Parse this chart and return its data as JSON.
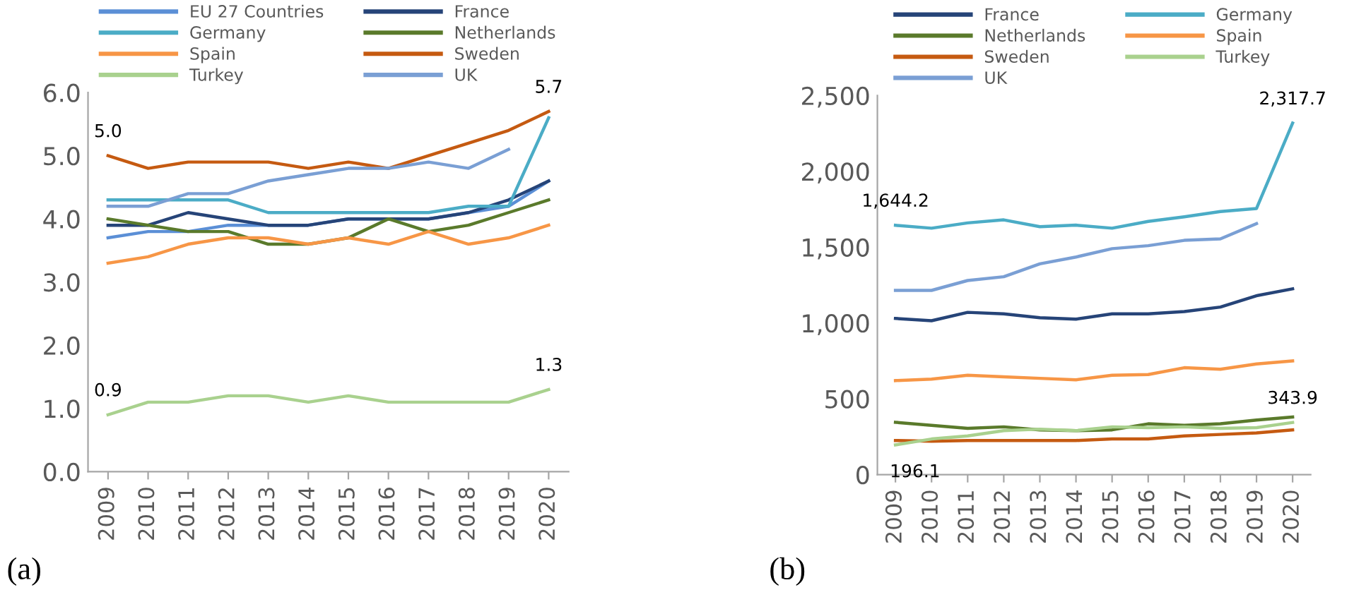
{
  "chart_data": [
    {
      "type": "line",
      "categories": [
        "2009",
        "2010",
        "2011",
        "2012",
        "2013",
        "2014",
        "2015",
        "2016",
        "2017",
        "2018",
        "2019",
        "2020"
      ],
      "ylim": [
        0,
        6
      ],
      "yticks": [
        {
          "value": 0,
          "label": "0.0"
        },
        {
          "value": 1,
          "label": "1.0"
        },
        {
          "value": 2,
          "label": "2.0"
        },
        {
          "value": 3,
          "label": "3.0"
        },
        {
          "value": 4,
          "label": "4.0"
        },
        {
          "value": 5,
          "label": "5.0"
        },
        {
          "value": 6,
          "label": "6.0"
        }
      ],
      "grid": false,
      "legend": "top",
      "marker": "none",
      "line_style": "solid",
      "series": [
        {
          "name": "EU 27 Countries",
          "color": "#5b8fd6",
          "values": [
            3.7,
            3.8,
            3.8,
            3.9,
            3.9,
            3.9,
            4.0,
            4.0,
            4.0,
            4.1,
            4.2,
            4.6
          ]
        },
        {
          "name": "France",
          "color": "#264478",
          "values": [
            3.9,
            3.9,
            4.1,
            4.0,
            3.9,
            3.9,
            4.0,
            4.0,
            4.0,
            4.1,
            4.3,
            4.6
          ]
        },
        {
          "name": "Germany",
          "color": "#4bacc6",
          "values": [
            4.3,
            4.3,
            4.3,
            4.3,
            4.1,
            4.1,
            4.1,
            4.1,
            4.1,
            4.2,
            4.2,
            5.6
          ]
        },
        {
          "name": "Netherlands",
          "color": "#5a7a2b",
          "values": [
            4.0,
            3.9,
            3.8,
            3.8,
            3.6,
            3.6,
            3.7,
            4.0,
            3.8,
            3.9,
            4.1,
            4.3
          ]
        },
        {
          "name": "Spain",
          "color": "#f79646",
          "values": [
            3.3,
            3.4,
            3.6,
            3.7,
            3.7,
            3.6,
            3.7,
            3.6,
            3.8,
            3.6,
            3.7,
            3.9
          ]
        },
        {
          "name": "Sweden",
          "color": "#c55a11",
          "values": [
            5.0,
            4.8,
            4.9,
            4.9,
            4.9,
            4.8,
            4.9,
            4.8,
            5.0,
            5.2,
            5.4,
            5.7
          ]
        },
        {
          "name": "Turkey",
          "color": "#a9d18e",
          "values": [
            0.9,
            1.1,
            1.1,
            1.2,
            1.2,
            1.1,
            1.2,
            1.1,
            1.1,
            1.1,
            1.1,
            1.3
          ]
        },
        {
          "name": "UK",
          "color": "#7a9fd4",
          "values": [
            4.2,
            4.2,
            4.4,
            4.4,
            4.6,
            4.7,
            4.8,
            4.8,
            4.9,
            4.8,
            5.1,
            null
          ]
        }
      ],
      "annotations": [
        {
          "text": "5.0",
          "x": "2009",
          "y": 5.0
        },
        {
          "text": "5.7",
          "x": "2020",
          "y": 5.7
        },
        {
          "text": "0.9",
          "x": "2009",
          "y": 0.9
        },
        {
          "text": "1.3",
          "x": "2020",
          "y": 1.3
        },
        "(a)"
      ]
    },
    {
      "type": "line",
      "categories": [
        "2009",
        "2010",
        "2011",
        "2012",
        "2013",
        "2014",
        "2015",
        "2016",
        "2017",
        "2018",
        "2019",
        "2020"
      ],
      "ylim": [
        0,
        2500
      ],
      "yticks": [
        0,
        500,
        {
          "value": 1000,
          "label": "1,000"
        },
        {
          "value": 1500,
          "label": "1,500"
        },
        {
          "value": 2000,
          "label": "2,000"
        },
        {
          "value": 2500,
          "label": "2,500"
        }
      ],
      "grid": false,
      "legend": "top",
      "marker": "none",
      "line_style": "solid",
      "series": [
        {
          "name": "France",
          "color": "#264478",
          "values": [
            1030,
            1015,
            1070,
            1060,
            1035,
            1025,
            1060,
            1060,
            1075,
            1105,
            1180,
            1225
          ]
        },
        {
          "name": "Germany",
          "color": "#4bacc6",
          "values": [
            1644.2,
            1625,
            1660,
            1680,
            1635,
            1645,
            1625,
            1670,
            1700,
            1735,
            1755,
            2317.7
          ]
        },
        {
          "name": "Netherlands",
          "color": "#5a7a2b",
          "values": [
            345,
            325,
            305,
            315,
            295,
            290,
            295,
            335,
            325,
            335,
            360,
            380
          ]
        },
        {
          "name": "Spain",
          "color": "#f79646",
          "values": [
            620,
            630,
            655,
            645,
            635,
            625,
            655,
            660,
            705,
            695,
            730,
            750
          ]
        },
        {
          "name": "Sweden",
          "color": "#c55a11",
          "values": [
            225,
            220,
            225,
            225,
            225,
            225,
            235,
            235,
            255,
            265,
            275,
            295
          ]
        },
        {
          "name": "Turkey",
          "color": "#a9d18e",
          "values": [
            196.1,
            235,
            255,
            290,
            300,
            290,
            315,
            310,
            315,
            305,
            310,
            343.9
          ]
        },
        {
          "name": "UK",
          "color": "#7a9fd4",
          "values": [
            1215,
            1215,
            1280,
            1305,
            1390,
            1435,
            1490,
            1510,
            1545,
            1555,
            1655,
            null
          ]
        }
      ],
      "annotations": [
        {
          "text": "1,644.2",
          "x": "2009",
          "y": 1644.2
        },
        {
          "text": "2,317.7",
          "x": "2020",
          "y": 2317.7
        },
        {
          "text": "196.1",
          "x": "2009",
          "y": 196.1
        },
        {
          "text": "343.9",
          "x": "2020",
          "y": 343.9
        },
        "(b)"
      ]
    }
  ]
}
